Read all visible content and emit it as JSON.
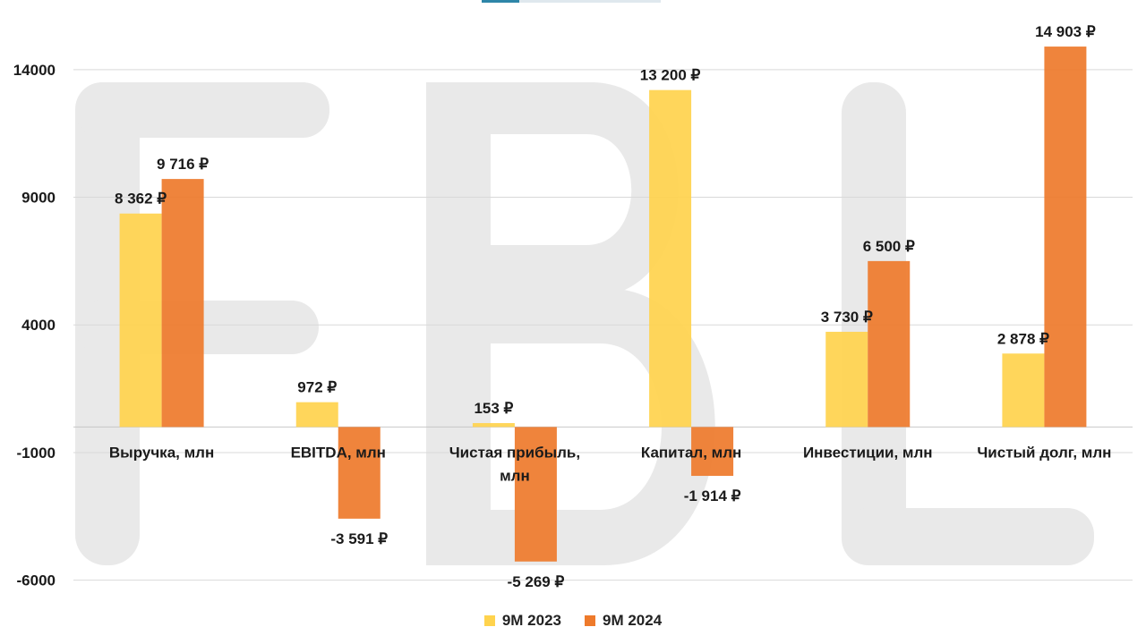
{
  "colors": {
    "series_2023": "#FFD34D",
    "series_2024": "#EE7A2B",
    "grid": "#d9d9d9",
    "watermark": "#e9e9e9",
    "text": "#1a1a1a"
  },
  "watermark_text": "FBL",
  "chart_data": {
    "type": "bar",
    "categories": [
      [
        "Выручка, млн"
      ],
      [
        "EBITDA, млн"
      ],
      [
        "Чистая прибыль,",
        "млн"
      ],
      [
        "Капитал, млн"
      ],
      [
        "Инвестиции, млн"
      ],
      [
        "Чистый долг, млн"
      ]
    ],
    "series": [
      {
        "name": "9M 2023",
        "values": [
          8362,
          972,
          153,
          13200,
          3730,
          2878
        ],
        "labels": [
          "8 362 ₽",
          "972 ₽",
          "153 ₽",
          "13 200 ₽",
          "3 730 ₽",
          "2 878 ₽"
        ]
      },
      {
        "name": "9M 2024",
        "values": [
          9716,
          -3591,
          -5269,
          -1914,
          6500,
          14903
        ],
        "labels": [
          "9 716 ₽",
          "-3 591 ₽",
          "-5 269 ₽",
          "-1 914 ₽",
          "6 500 ₽",
          "14 903 ₽"
        ]
      }
    ],
    "y_ticks": [
      14000,
      9000,
      4000,
      -1000,
      -6000
    ],
    "y_tick_labels": [
      "14000",
      "9000",
      "4000",
      "-1000",
      "-6000"
    ],
    "ylim": [
      -6000,
      16000
    ],
    "grid": true,
    "legend_position": "bottom",
    "title": "",
    "xlabel": "",
    "ylabel": ""
  }
}
